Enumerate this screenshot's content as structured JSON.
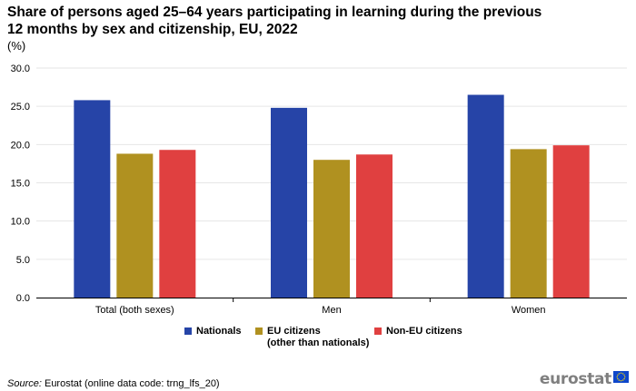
{
  "header": {
    "title": "Share of persons aged 25–64 years participating in learning during the previous 12 months by sex and citizenship, EU, 2022",
    "unit": "(%)"
  },
  "chart_data": {
    "type": "bar",
    "title": "Share of persons aged 25–64 years participating in learning during the previous 12 months by sex and citizenship, EU, 2022",
    "ylabel": "(%)",
    "xlabel": "",
    "categories": [
      "Total (both sexes)",
      "Men",
      "Women"
    ],
    "series": [
      {
        "name": "Nationals",
        "values": [
          25.8,
          24.8,
          26.5
        ],
        "color": "#2644a7"
      },
      {
        "name": "EU citizens\n(other than nationals)",
        "values": [
          18.8,
          18.0,
          19.4
        ],
        "color": "#b09120"
      },
      {
        "name": "Non-EU citizens",
        "values": [
          19.3,
          18.7,
          19.9
        ],
        "color": "#e04040"
      }
    ],
    "ylim": [
      0,
      30
    ],
    "yticks": [
      "0.0",
      "5.0",
      "10.0",
      "15.0",
      "20.0",
      "25.0",
      "30.0"
    ],
    "grid": true,
    "legend_position": "bottom"
  },
  "footer": {
    "source_label": "Source:",
    "source_text": " Eurostat (online data code: trng_lfs_20)",
    "logo_text": "eurostat",
    "flag_icon": "eu-flag-icon"
  }
}
